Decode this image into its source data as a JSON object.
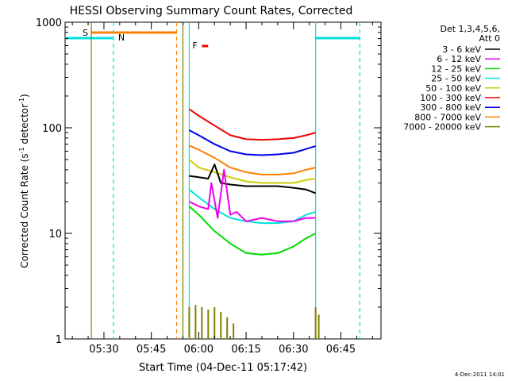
{
  "chart_data": {
    "type": "line",
    "title": "HESSI Observing Summary Count Rates, Corrected",
    "xlabel": "Start Time (04-Dec-11 05:17:42)",
    "ylabel": "Corrected Count Rate (s",
    "ylabel_sup1": "-1",
    "ylabel_mid": " detector",
    "ylabel_sup2": "-1",
    "ylabel_end": ")",
    "yscale": "log",
    "xlim": [
      "05:17:42",
      "06:57:42"
    ],
    "ylim": [
      1,
      1000
    ],
    "x_ticks": [
      "05:30",
      "05:45",
      "06:00",
      "06:15",
      "06:30",
      "06:45"
    ],
    "y_ticks": [
      "1",
      "10",
      "100",
      "1000"
    ],
    "legend": {
      "placement": "right",
      "header_line1": "Det 1,3,4,5,6,",
      "header_line2": "Att 0",
      "entries": [
        {
          "label": "3 - 6 keV",
          "color": "#000000"
        },
        {
          "label": "6 - 12 keV",
          "color": "#ee00ee"
        },
        {
          "label": "12 - 25 keV",
          "color": "#00dd00"
        },
        {
          "label": "25 - 50 keV",
          "color": "#00e0e0"
        },
        {
          "label": "50 - 100 keV",
          "color": "#cccc00"
        },
        {
          "label": "100 - 300 keV",
          "color": "#ee0000"
        },
        {
          "label": "300 - 800 keV",
          "color": "#0000ee"
        },
        {
          "label": "800 - 7000 keV",
          "color": "#ff8000"
        },
        {
          "label": "7000 - 20000 keV",
          "color": "#808000"
        }
      ]
    },
    "series": [
      {
        "label_ref": "100 - 300 keV",
        "color": "#ee0000",
        "x": [
          "05:57",
          "06:00",
          "06:05",
          "06:10",
          "06:15",
          "06:20",
          "06:25",
          "06:30",
          "06:34",
          "06:37"
        ],
        "values": [
          150,
          130,
          105,
          85,
          78,
          77,
          78,
          80,
          85,
          90
        ]
      },
      {
        "label_ref": "300 - 800 keV",
        "color": "#0000ee",
        "x": [
          "05:57",
          "06:00",
          "06:05",
          "06:10",
          "06:15",
          "06:20",
          "06:25",
          "06:30",
          "06:34",
          "06:37"
        ],
        "values": [
          95,
          85,
          70,
          60,
          56,
          55,
          56,
          58,
          63,
          67
        ]
      },
      {
        "label_ref": "800 - 7000 keV",
        "color": "#ff8000",
        "x": [
          "05:57",
          "06:00",
          "06:05",
          "06:10",
          "06:15",
          "06:20",
          "06:25",
          "06:30",
          "06:34",
          "06:37"
        ],
        "values": [
          68,
          62,
          52,
          42,
          38,
          36,
          36,
          37,
          40,
          42
        ]
      },
      {
        "label_ref": "50 - 100 keV",
        "color": "#cccc00",
        "x": [
          "05:57",
          "06:00",
          "06:05",
          "06:10",
          "06:15",
          "06:20",
          "06:25",
          "06:30",
          "06:34",
          "06:37"
        ],
        "values": [
          50,
          42,
          38,
          34,
          31,
          30,
          30,
          30,
          32,
          33
        ]
      },
      {
        "label_ref": "3 - 6 keV",
        "color": "#000000",
        "x": [
          "05:57",
          "06:00",
          "06:03",
          "06:05",
          "06:07",
          "06:10",
          "06:15",
          "06:20",
          "06:25",
          "06:30",
          "06:34",
          "06:37"
        ],
        "values": [
          35,
          34,
          33,
          45,
          30,
          29,
          28,
          28,
          28,
          27,
          26,
          24
        ]
      },
      {
        "label_ref": "25 - 50 keV",
        "color": "#00e0e0",
        "x": [
          "05:57",
          "06:00",
          "06:05",
          "06:10",
          "06:15",
          "06:20",
          "06:25",
          "06:30",
          "06:34",
          "06:37"
        ],
        "values": [
          26,
          22,
          17,
          14,
          13,
          12.5,
          12.5,
          13,
          15,
          16
        ]
      },
      {
        "label_ref": "6 - 12 keV",
        "color": "#ee00ee",
        "x": [
          "05:57",
          "06:00",
          "06:03",
          "06:04",
          "06:06",
          "06:08",
          "06:10",
          "06:12",
          "06:15",
          "06:20",
          "06:25",
          "06:30",
          "06:34",
          "06:37"
        ],
        "values": [
          20,
          18,
          17,
          30,
          14,
          40,
          15,
          16,
          13,
          14,
          13,
          13,
          14,
          14
        ]
      },
      {
        "label_ref": "12 - 25 keV",
        "color": "#00dd00",
        "x": [
          "05:57",
          "06:00",
          "06:05",
          "06:10",
          "06:15",
          "06:20",
          "06:25",
          "06:30",
          "06:34",
          "06:37"
        ],
        "values": [
          18,
          15,
          10.5,
          8,
          6.5,
          6.3,
          6.5,
          7.5,
          9,
          10
        ]
      },
      {
        "label_ref": "7000 - 20000 keV",
        "color": "#808000",
        "x": [
          "05:57",
          "05:59",
          "06:01",
          "06:03",
          "06:05",
          "06:07",
          "06:09",
          "06:11",
          "06:37",
          "06:38"
        ],
        "values": [
          2.0,
          2.1,
          2.0,
          1.9,
          2.0,
          1.8,
          1.6,
          1.4,
          2.0,
          1.7
        ]
      }
    ],
    "annotations": {
      "S": {
        "label": "S",
        "color": "#ff8000",
        "start": "05:26",
        "end": "05:53"
      },
      "N": {
        "label": "N",
        "color": "#00e0e0",
        "segments": [
          [
            "05:17:42",
            "05:33"
          ],
          [
            "06:37",
            "06:51"
          ]
        ]
      },
      "F": {
        "label": "F",
        "color": "#ee0000",
        "start": "06:01",
        "end": "06:03"
      }
    },
    "vlines": [
      {
        "t": "05:26",
        "color": "#808000",
        "style": "solid"
      },
      {
        "t": "05:33",
        "color": "#00e0e0",
        "style": "dashed"
      },
      {
        "t": "05:53",
        "color": "#ff8000",
        "style": "dashed"
      },
      {
        "t": "05:55",
        "color": "#808000",
        "style": "solid"
      },
      {
        "t": "05:57",
        "color": "#00e0e0",
        "style": "solid"
      },
      {
        "t": "06:37",
        "color": "#00e0e0",
        "style": "solid"
      },
      {
        "t": "06:51",
        "color": "#00e0e0",
        "style": "dashed"
      }
    ],
    "footer_text": "4-Dec-2011 14:01",
    "grid": false
  }
}
